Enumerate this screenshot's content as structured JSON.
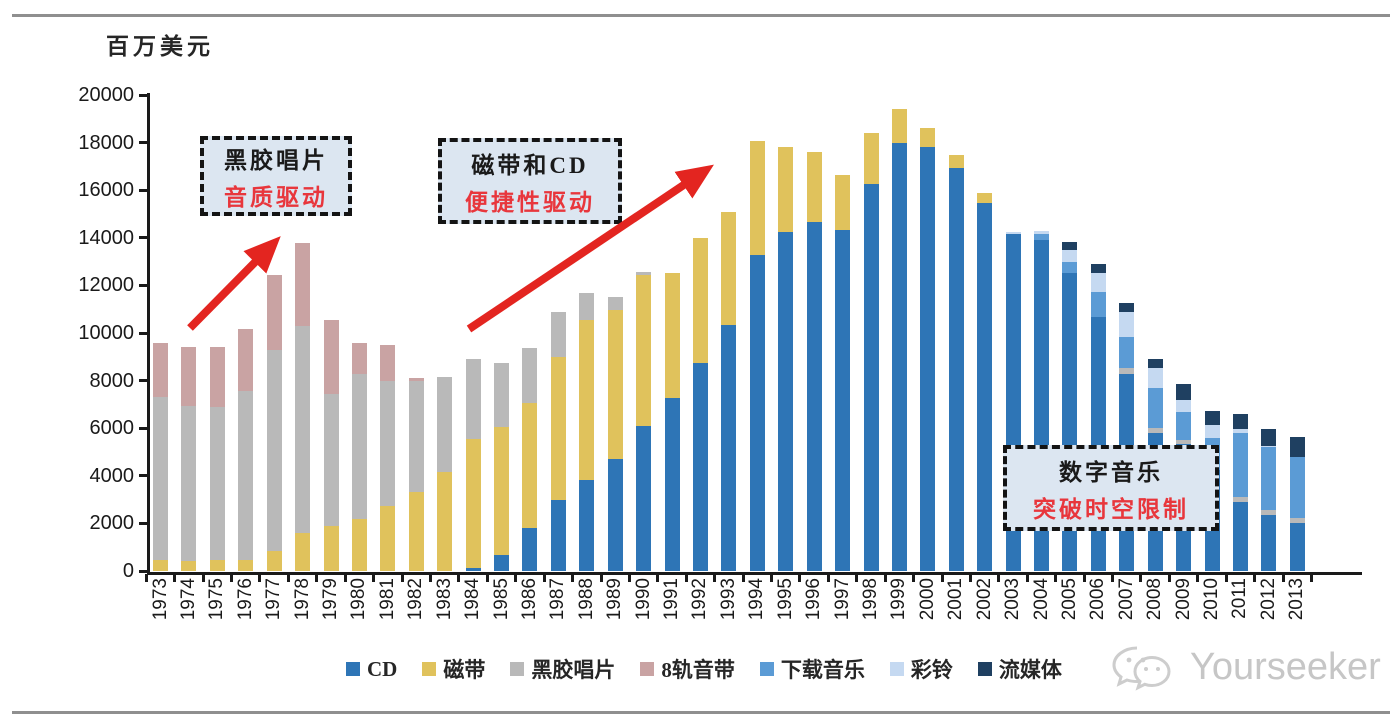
{
  "page": {
    "unit_label": "百万美元",
    "watermark_text": "Yourseeker"
  },
  "annotations": [
    {
      "title": "黑胶唱片",
      "subtitle": "音质驱动"
    },
    {
      "title": "磁带和CD",
      "subtitle": "便捷性驱动"
    },
    {
      "title": "数字音乐",
      "subtitle": "突破时空限制"
    }
  ],
  "colors": {
    "axis": "#1a1a1a",
    "arrow_red": "#e32520",
    "callout_bg": "#dce6f1",
    "callout_red_text": "#e8363c",
    "watermark_gray": "#c6c6c6"
  },
  "chart_data": {
    "type": "bar",
    "stacked": true,
    "ylabel": "百万美元",
    "ylim": [
      0,
      20000
    ],
    "ytick_interval": 2000,
    "grid": false,
    "legend_position": "bottom",
    "categories": [
      "1973",
      "1974",
      "1975",
      "1976",
      "1977",
      "1978",
      "1979",
      "1980",
      "1981",
      "1982",
      "1983",
      "1984",
      "1985",
      "1986",
      "1987",
      "1988",
      "1989",
      "1990",
      "1991",
      "1992",
      "1993",
      "1994",
      "1995",
      "1996",
      "1997",
      "1998",
      "1999",
      "2000",
      "2001",
      "2002",
      "2003",
      "2004",
      "2005",
      "2006",
      "2007",
      "2008",
      "2009",
      "2010",
      "2011",
      "2012",
      "2013"
    ],
    "series": [
      {
        "name": "CD",
        "color": "#2e75b6",
        "values": [
          0,
          0,
          0,
          0,
          0,
          0,
          0,
          0,
          0,
          0,
          0,
          130,
          670,
          1800,
          2980,
          3820,
          4700,
          6100,
          7270,
          8740,
          10330,
          13270,
          14240,
          14660,
          14320,
          16260,
          17980,
          17810,
          16930,
          15460,
          14150,
          13900,
          12520,
          10670,
          8280,
          5800,
          5340,
          4250,
          2900,
          2350,
          2020
        ]
      },
      {
        "name": "磁带",
        "color": "#e0c25c",
        "values": [
          450,
          440,
          450,
          480,
          840,
          1600,
          1900,
          2180,
          2730,
          3300,
          4180,
          5420,
          5380,
          5250,
          6010,
          6720,
          6270,
          6350,
          5260,
          5250,
          4750,
          4790,
          3570,
          2940,
          2310,
          2140,
          1430,
          800,
          550,
          420,
          0,
          0,
          0,
          0,
          0,
          0,
          0,
          0,
          0,
          0,
          0
        ]
      },
      {
        "name": "黑胶唱片",
        "color": "#b9b9b9",
        "values": [
          6850,
          6500,
          6450,
          7080,
          8460,
          8680,
          5520,
          6080,
          5240,
          4700,
          3970,
          3360,
          2690,
          2310,
          1890,
          1130,
          550,
          100,
          0,
          0,
          0,
          0,
          0,
          0,
          0,
          0,
          0,
          0,
          0,
          0,
          0,
          0,
          0,
          0,
          250,
          210,
          170,
          0,
          210,
          210,
          210
        ]
      },
      {
        "name": "8轨音带",
        "color": "#c9a3a3",
        "values": [
          2280,
          2460,
          2500,
          2590,
          3150,
          3520,
          3140,
          1340,
          1530,
          100,
          0,
          0,
          0,
          0,
          0,
          0,
          0,
          0,
          0,
          0,
          0,
          0,
          0,
          0,
          0,
          0,
          0,
          0,
          0,
          0,
          0,
          0,
          0,
          0,
          0,
          0,
          0,
          0,
          0,
          0,
          0
        ]
      },
      {
        "name": "下载音乐",
        "color": "#5b9bd5",
        "values": [
          0,
          0,
          0,
          0,
          0,
          0,
          0,
          0,
          0,
          0,
          0,
          0,
          0,
          0,
          0,
          0,
          0,
          0,
          0,
          0,
          0,
          0,
          0,
          0,
          0,
          0,
          0,
          0,
          0,
          0,
          0,
          250,
          480,
          1050,
          1300,
          1680,
          1180,
          1340,
          2690,
          2650,
          2560
        ]
      },
      {
        "name": "彩铃",
        "color": "#c5d9f1",
        "values": [
          0,
          0,
          0,
          0,
          0,
          0,
          0,
          0,
          0,
          0,
          0,
          0,
          0,
          0,
          0,
          0,
          0,
          0,
          0,
          0,
          0,
          0,
          0,
          0,
          0,
          0,
          0,
          0,
          0,
          0,
          100,
          140,
          490,
          800,
          1050,
          840,
          500,
          550,
          170,
          60,
          0
        ]
      },
      {
        "name": "流媒体",
        "color": "#1f4061",
        "values": [
          0,
          0,
          0,
          0,
          0,
          0,
          0,
          0,
          0,
          0,
          0,
          0,
          0,
          0,
          0,
          0,
          0,
          0,
          0,
          0,
          0,
          0,
          0,
          0,
          0,
          0,
          0,
          0,
          0,
          0,
          0,
          0,
          340,
          380,
          380,
          380,
          670,
          590,
          630,
          710,
          840
        ]
      }
    ]
  }
}
